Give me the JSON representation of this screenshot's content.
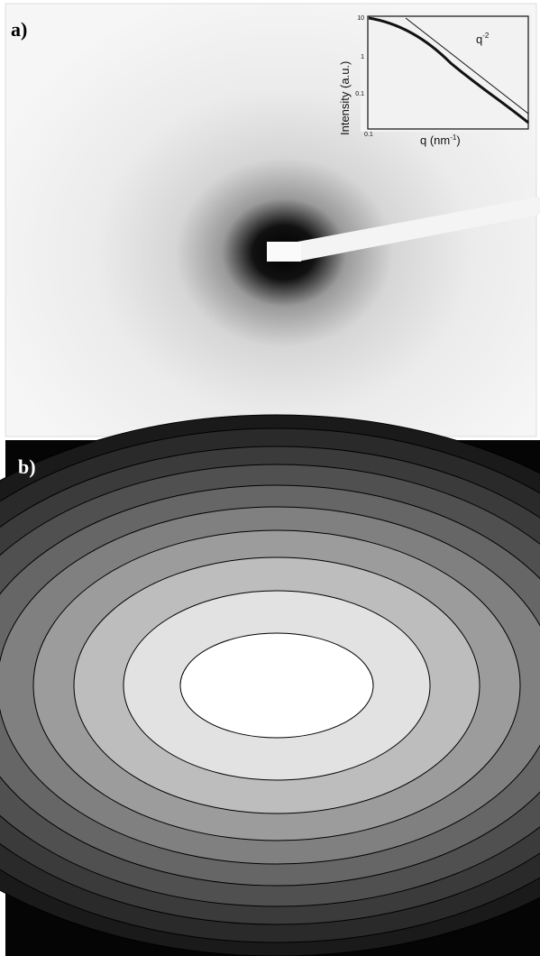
{
  "panels": [
    {
      "label": "a)",
      "inset": {
        "y_label": "Intensity (a.u.)",
        "x_label": "q (nm",
        "x_label_sup": "-1",
        "x_label_tail": ")",
        "annotation": "q",
        "annotation_sup": "-2",
        "y_tick_labels": [
          "10",
          "1",
          "0.1"
        ],
        "x_tick_labels": [
          "0.1"
        ]
      }
    },
    {
      "label": "b)"
    }
  ]
}
